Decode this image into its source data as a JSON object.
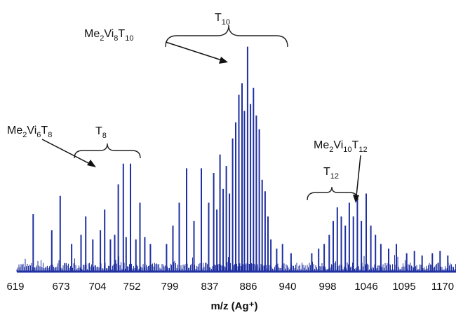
{
  "chart_data": {
    "type": "bar",
    "title": "",
    "xlabel": "m/z (Ag⁺)",
    "ylabel": "",
    "x_tick_labels": [
      "619",
      "673",
      "704",
      "752",
      "799",
      "837",
      "886",
      "940",
      "998",
      "1046",
      "1095",
      "1170"
    ],
    "y_scale": "relative intensity (no printed axis)",
    "ylim": [
      0,
      100
    ],
    "grid": false,
    "legend": "none",
    "bar_color": "#2030a0",
    "peaks": [
      {
        "x": 640,
        "y": 25
      },
      {
        "x": 662,
        "y": 18
      },
      {
        "x": 672,
        "y": 33
      },
      {
        "x": 682,
        "y": 12
      },
      {
        "x": 690,
        "y": 16
      },
      {
        "x": 694,
        "y": 24
      },
      {
        "x": 700,
        "y": 14
      },
      {
        "x": 708,
        "y": 18
      },
      {
        "x": 714,
        "y": 27
      },
      {
        "x": 722,
        "y": 14
      },
      {
        "x": 728,
        "y": 16
      },
      {
        "x": 733,
        "y": 38
      },
      {
        "x": 740,
        "y": 47
      },
      {
        "x": 744,
        "y": 15
      },
      {
        "x": 750,
        "y": 47
      },
      {
        "x": 757,
        "y": 14
      },
      {
        "x": 762,
        "y": 30
      },
      {
        "x": 768,
        "y": 15
      },
      {
        "x": 775,
        "y": 12
      },
      {
        "x": 795,
        "y": 12
      },
      {
        "x": 802,
        "y": 20
      },
      {
        "x": 808,
        "y": 30
      },
      {
        "x": 815,
        "y": 45
      },
      {
        "x": 822,
        "y": 22
      },
      {
        "x": 829,
        "y": 45
      },
      {
        "x": 836,
        "y": 30
      },
      {
        "x": 842,
        "y": 43
      },
      {
        "x": 846,
        "y": 27
      },
      {
        "x": 850,
        "y": 51
      },
      {
        "x": 854,
        "y": 36
      },
      {
        "x": 858,
        "y": 46
      },
      {
        "x": 862,
        "y": 34
      },
      {
        "x": 866,
        "y": 58
      },
      {
        "x": 870,
        "y": 65
      },
      {
        "x": 874,
        "y": 77
      },
      {
        "x": 878,
        "y": 82
      },
      {
        "x": 881,
        "y": 70
      },
      {
        "x": 885,
        "y": 98
      },
      {
        "x": 889,
        "y": 73
      },
      {
        "x": 893,
        "y": 80
      },
      {
        "x": 897,
        "y": 68
      },
      {
        "x": 901,
        "y": 62
      },
      {
        "x": 905,
        "y": 40
      },
      {
        "x": 909,
        "y": 35
      },
      {
        "x": 913,
        "y": 24
      },
      {
        "x": 917,
        "y": 14
      },
      {
        "x": 925,
        "y": 10
      },
      {
        "x": 933,
        "y": 12
      },
      {
        "x": 945,
        "y": 8
      },
      {
        "x": 975,
        "y": 8
      },
      {
        "x": 985,
        "y": 10
      },
      {
        "x": 993,
        "y": 12
      },
      {
        "x": 1000,
        "y": 16
      },
      {
        "x": 1005,
        "y": 22
      },
      {
        "x": 1010,
        "y": 28
      },
      {
        "x": 1015,
        "y": 24
      },
      {
        "x": 1020,
        "y": 20
      },
      {
        "x": 1025,
        "y": 30
      },
      {
        "x": 1030,
        "y": 24
      },
      {
        "x": 1035,
        "y": 32
      },
      {
        "x": 1040,
        "y": 22
      },
      {
        "x": 1046,
        "y": 34
      },
      {
        "x": 1052,
        "y": 20
      },
      {
        "x": 1058,
        "y": 16
      },
      {
        "x": 1065,
        "y": 12
      },
      {
        "x": 1075,
        "y": 10
      },
      {
        "x": 1085,
        "y": 12
      },
      {
        "x": 1100,
        "y": 8
      },
      {
        "x": 1115,
        "y": 9
      },
      {
        "x": 1130,
        "y": 7
      },
      {
        "x": 1150,
        "y": 8
      },
      {
        "x": 1165,
        "y": 9
      },
      {
        "x": 1180,
        "y": 7
      }
    ],
    "annotations": [
      {
        "id": "t8_group",
        "main": "T",
        "sub": "8"
      },
      {
        "id": "t10_group",
        "main": "T",
        "sub": "10"
      },
      {
        "id": "t12_group",
        "main": "T",
        "sub": "12"
      },
      {
        "id": "me2vi6t8",
        "parts": [
          [
            "Me",
            ""
          ],
          [
            "",
            "2"
          ],
          [
            "Vi",
            ""
          ],
          [
            "",
            "6"
          ],
          [
            "T",
            ""
          ],
          [
            "",
            "8"
          ]
        ]
      },
      {
        "id": "me2vi8t10",
        "parts": [
          [
            "Me",
            ""
          ],
          [
            "",
            "2"
          ],
          [
            "Vi",
            ""
          ],
          [
            "",
            "8"
          ],
          [
            "T",
            ""
          ],
          [
            "",
            "10"
          ]
        ]
      },
      {
        "id": "me2vi10t12",
        "parts": [
          [
            "Me",
            ""
          ],
          [
            "",
            "2"
          ],
          [
            "Vi",
            ""
          ],
          [
            "",
            "10"
          ],
          [
            "T",
            ""
          ],
          [
            "",
            "12"
          ]
        ]
      }
    ]
  }
}
